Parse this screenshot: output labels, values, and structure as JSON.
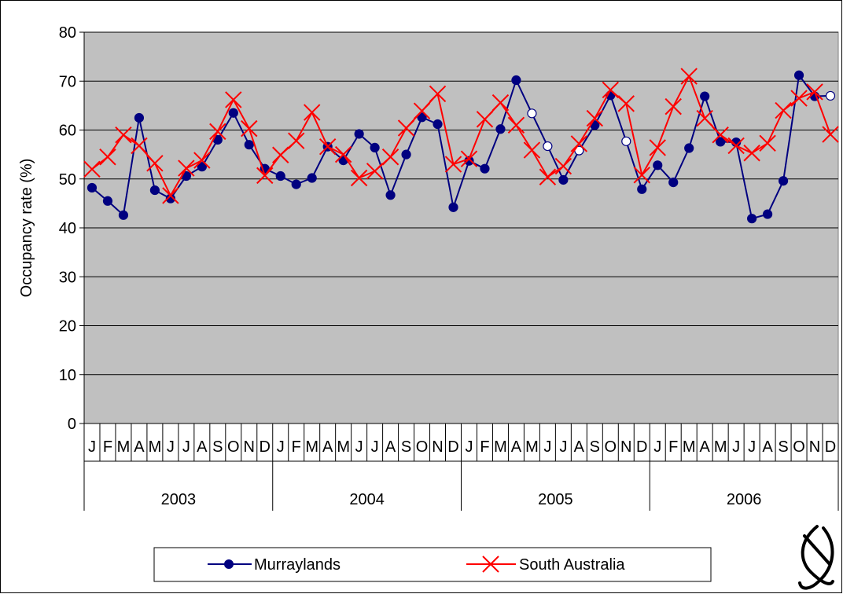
{
  "chart_data": {
    "type": "line",
    "ylabel": "Occupancy rate (%)",
    "ylim": [
      0,
      80
    ],
    "yticks": [
      0,
      10,
      20,
      30,
      40,
      50,
      60,
      70,
      80
    ],
    "grid": true,
    "plot_background": "#c0c0c0",
    "legend_position": "bottom-center",
    "month_labels": [
      "J",
      "F",
      "M",
      "A",
      "M",
      "J",
      "J",
      "A",
      "S",
      "O",
      "N",
      "D",
      "J",
      "F",
      "M",
      "A",
      "M",
      "J",
      "J",
      "A",
      "S",
      "O",
      "N",
      "D",
      "J",
      "F",
      "M",
      "A",
      "M",
      "J",
      "J",
      "A",
      "S",
      "O",
      "N",
      "D",
      "J",
      "F",
      "M",
      "A",
      "M",
      "J",
      "J",
      "A",
      "S",
      "O",
      "N",
      "D"
    ],
    "year_labels": [
      "2003",
      "2004",
      "2005",
      "2006"
    ],
    "series": [
      {
        "name": "Murraylands",
        "color": "#000080",
        "marker": "filled-circle",
        "values": [
          48.2,
          45.5,
          42.6,
          62.5,
          47.7,
          46.0,
          50.6,
          52.5,
          58.0,
          63.5,
          57.0,
          52.1,
          50.6,
          48.9,
          50.2,
          56.6,
          53.8,
          59.2,
          56.4,
          46.7,
          55.0,
          62.6,
          61.2,
          44.2,
          53.7,
          52.1,
          60.2,
          70.2,
          63.4,
          56.7,
          49.8,
          55.8,
          61.0,
          67.1,
          57.7,
          47.9,
          52.8,
          49.3,
          56.3,
          66.9,
          57.6,
          57.5,
          41.9,
          42.8,
          49.6,
          71.2,
          66.9,
          67.0
        ],
        "open_marker_indices": [
          28,
          29,
          31,
          34,
          47
        ]
      },
      {
        "name": "South Australia",
        "color": "#ff0000",
        "marker": "x",
        "values": [
          52.0,
          54.5,
          59.0,
          56.8,
          53.2,
          46.6,
          52.2,
          53.8,
          59.7,
          66.2,
          60.3,
          50.7,
          54.9,
          57.8,
          63.6,
          56.6,
          55.0,
          50.2,
          51.6,
          54.5,
          60.4,
          63.9,
          67.4,
          53.0,
          54.1,
          62.2,
          65.6,
          61.0,
          55.9,
          50.4,
          52.6,
          57.2,
          62.4,
          68.2,
          65.4,
          50.8,
          56.4,
          64.8,
          71.0,
          62.4,
          59.0,
          56.8,
          55.3,
          57.3,
          64.0,
          66.5,
          67.8,
          59.1
        ]
      }
    ]
  }
}
